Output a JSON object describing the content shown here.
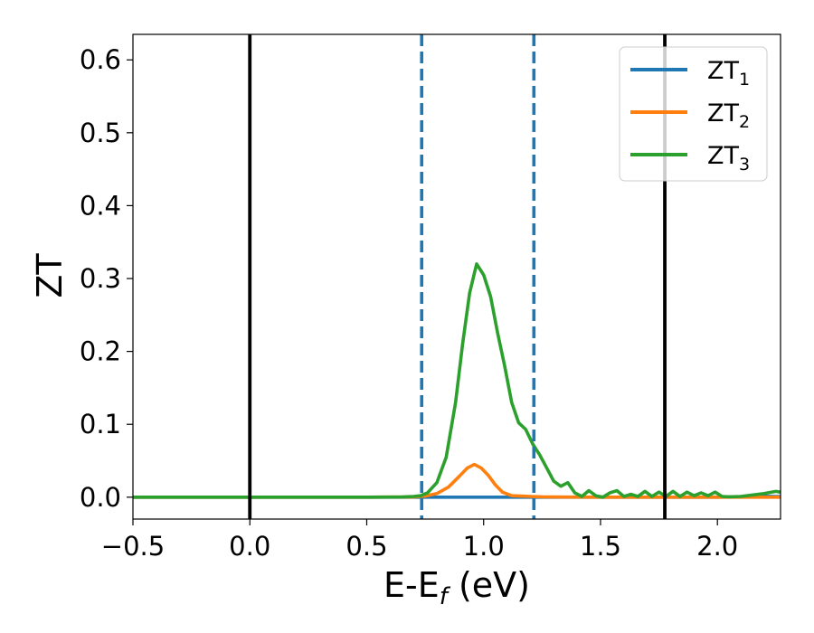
{
  "chart_data": {
    "type": "line",
    "xlabel": "E-E",
    "xlabel_sub": "f",
    "xlabel_unit": " (eV)",
    "ylabel": "ZT",
    "xlim": [
      -0.5,
      2.27
    ],
    "ylim": [
      -0.03,
      0.635
    ],
    "xticks": [
      -0.5,
      0.0,
      0.5,
      1.0,
      1.5,
      2.0
    ],
    "xtick_labels": [
      "−0.5",
      "0.0",
      "0.5",
      "1.0",
      "1.5",
      "2.0"
    ],
    "yticks": [
      0.0,
      0.1,
      0.2,
      0.3,
      0.4,
      0.5,
      0.6
    ],
    "ytick_labels": [
      "0.0",
      "0.1",
      "0.2",
      "0.3",
      "0.4",
      "0.5",
      "0.6"
    ],
    "grid": false,
    "legend_position": "top-right",
    "vertical_lines": [
      {
        "x": 0.0,
        "style": "solid",
        "color": "#000000"
      },
      {
        "x": 1.775,
        "style": "solid",
        "color": "#000000"
      },
      {
        "x": 0.735,
        "style": "dashed",
        "color": "#1f77b4"
      },
      {
        "x": 1.215,
        "style": "dashed",
        "color": "#1f77b4"
      }
    ],
    "series": [
      {
        "name": "ZT",
        "name_sub": "1",
        "color": "#1f77b4",
        "x": [
          -0.5,
          0.0,
          0.5,
          1.0,
          1.5,
          2.0,
          2.1,
          2.15,
          2.2,
          2.27
        ],
        "y": [
          0,
          0,
          0,
          0,
          0,
          0,
          0.0005,
          0.001,
          0.0012,
          0.0008
        ]
      },
      {
        "name": "ZT",
        "name_sub": "2",
        "color": "#ff7f0e",
        "x": [
          -0.5,
          0.0,
          0.5,
          0.7,
          0.75,
          0.8,
          0.85,
          0.9,
          0.93,
          0.96,
          0.99,
          1.02,
          1.05,
          1.08,
          1.12,
          1.16,
          1.2,
          1.25,
          1.35,
          1.5,
          2.27
        ],
        "y": [
          0,
          0,
          0,
          0.0003,
          0.0015,
          0.005,
          0.014,
          0.03,
          0.04,
          0.045,
          0.04,
          0.03,
          0.017,
          0.007,
          0.002,
          0.0015,
          0.001,
          0.0005,
          0.0002,
          0,
          0
        ]
      },
      {
        "name": "ZT",
        "name_sub": "3",
        "color": "#2ca02c",
        "x": [
          -0.5,
          0.0,
          0.5,
          0.65,
          0.7,
          0.73,
          0.76,
          0.8,
          0.84,
          0.88,
          0.91,
          0.94,
          0.97,
          1.0,
          1.03,
          1.06,
          1.09,
          1.12,
          1.15,
          1.18,
          1.21,
          1.24,
          1.27,
          1.3,
          1.33,
          1.36,
          1.39,
          1.42,
          1.45,
          1.48,
          1.51,
          1.54,
          1.57,
          1.6,
          1.63,
          1.66,
          1.69,
          1.72,
          1.75,
          1.78,
          1.81,
          1.84,
          1.87,
          1.9,
          1.93,
          1.96,
          1.99,
          2.02,
          2.05,
          2.1,
          2.15,
          2.2,
          2.25,
          2.27
        ],
        "y": [
          0,
          0,
          0,
          0.0003,
          0.001,
          0.002,
          0.006,
          0.02,
          0.055,
          0.13,
          0.21,
          0.28,
          0.32,
          0.305,
          0.275,
          0.225,
          0.18,
          0.13,
          0.102,
          0.093,
          0.073,
          0.058,
          0.04,
          0.022,
          0.015,
          0.02,
          0.006,
          0.001,
          0.009,
          0.002,
          0.0,
          0.006,
          0.009,
          0.001,
          0.004,
          0.001,
          0.008,
          0.001,
          0.007,
          0.001,
          0.008,
          0.001,
          0.007,
          0.002,
          0.006,
          0.002,
          0.007,
          0.001,
          0.0005,
          0.001,
          0.003,
          0.005,
          0.008,
          0.007
        ]
      }
    ]
  }
}
